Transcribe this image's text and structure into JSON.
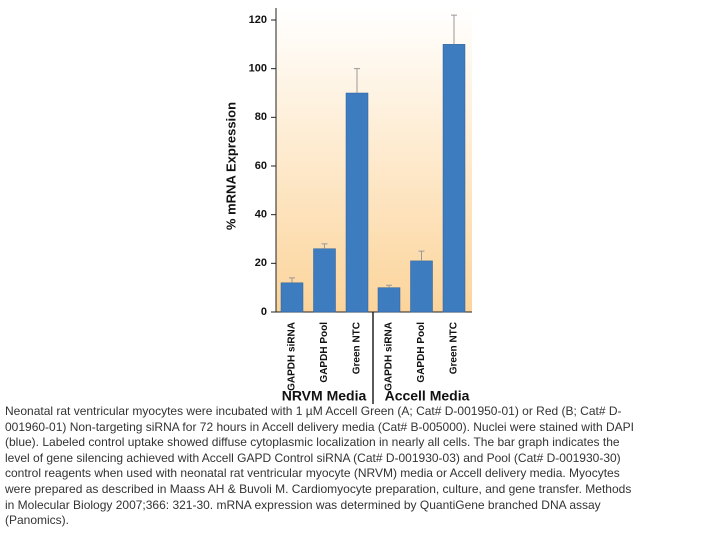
{
  "chart_data": {
    "type": "bar",
    "y_label": "% mRNA Expression",
    "color": "#3e7cc0",
    "groups": [
      {
        "name": "NRVM Media",
        "categories": [
          "GAPDH siRNA",
          "GAPDH Pool",
          "Green NTC"
        ],
        "values": [
          12,
          26,
          90
        ],
        "errors": [
          2,
          2,
          10
        ]
      },
      {
        "name": "Accell Media",
        "categories": [
          "GAPDH siRNA",
          "GAPDH Pool",
          "Green NTC"
        ],
        "values": [
          10,
          21,
          110
        ],
        "errors": [
          1,
          4,
          12
        ]
      }
    ],
    "ylim": [
      0,
      120
    ],
    "yticks": [
      0,
      20,
      40,
      60,
      80,
      100,
      120
    ]
  },
  "caption": [
    "Neonatal rat ventricular myocytes were incubated with 1 µM Accell Green (A; Cat# D-001950-01) or Red (B; Cat# D-",
    "001960-01) Non-targeting siRNA for 72 hours in Accell delivery media (Cat# B-005000). Nuclei were stained with DAPI",
    "(blue). Labeled control uptake showed diffuse cytoplasmic localization in nearly all cells. The bar graph indicates the",
    "level of gene silencing achieved with Accell GAPD Control siRNA (Cat# D-001930-03) and Pool (Cat# D-001930-30)",
    "control reagents when used with neonatal rat ventricular myocyte (NRVM) media or Accell delivery media. Myocytes",
    "were prepared as described in Maass AH & Buvoli M. Cardiomyocyte preparation, culture, and gene transfer. Methods",
    "in Molecular Biology 2007;366: 321-30. mRNA expression was determined by QuantiGene branched DNA assay",
    "(Panomics)."
  ]
}
